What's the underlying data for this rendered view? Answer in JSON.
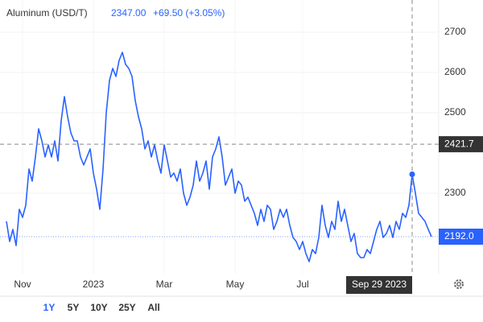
{
  "chart_data": {
    "type": "line",
    "title": "Aluminum (USD/T)",
    "price": "2347.00",
    "change": "+69.50 (+3.05%)",
    "series": [
      {
        "color": "#2962ff",
        "values": [
          2230,
          2180,
          2210,
          2170,
          2260,
          2240,
          2270,
          2360,
          2330,
          2390,
          2460,
          2430,
          2390,
          2420,
          2390,
          2430,
          2380,
          2480,
          2540,
          2490,
          2450,
          2430,
          2430,
          2390,
          2370,
          2390,
          2410,
          2350,
          2310,
          2260,
          2360,
          2500,
          2580,
          2610,
          2590,
          2630,
          2650,
          2620,
          2610,
          2590,
          2530,
          2490,
          2460,
          2410,
          2430,
          2390,
          2420,
          2380,
          2350,
          2420,
          2380,
          2340,
          2350,
          2330,
          2360,
          2300,
          2270,
          2290,
          2320,
          2380,
          2330,
          2350,
          2380,
          2310,
          2390,
          2410,
          2440,
          2390,
          2320,
          2340,
          2360,
          2300,
          2330,
          2320,
          2280,
          2290,
          2270,
          2250,
          2220,
          2260,
          2230,
          2270,
          2260,
          2210,
          2230,
          2260,
          2240,
          2260,
          2220,
          2190,
          2180,
          2160,
          2180,
          2150,
          2130,
          2160,
          2150,
          2190,
          2270,
          2220,
          2190,
          2230,
          2210,
          2280,
          2230,
          2260,
          2220,
          2180,
          2200,
          2150,
          2140,
          2140,
          2160,
          2150,
          2180,
          2210,
          2230,
          2190,
          2200,
          2220,
          2190,
          2230,
          2210,
          2250,
          2240,
          2270,
          2347,
          2300,
          2250,
          2240,
          2230,
          2210,
          2192
        ]
      }
    ],
    "ylim": [
      2100,
      2780
    ],
    "yticks": [
      2300,
      2500,
      2600,
      2700
    ],
    "xticks": [
      {
        "value": 5,
        "label": "Nov"
      },
      {
        "value": 27,
        "label": "2023"
      },
      {
        "value": 49,
        "label": "Mar"
      },
      {
        "value": 71,
        "label": "May"
      },
      {
        "value": 92,
        "label": "Jul"
      }
    ],
    "last_price": {
      "value": 2192,
      "label": "2192.0"
    },
    "crosshair": {
      "y": 2421.7,
      "point": 2347,
      "x_label": "Sep 29 2023"
    },
    "range_buttons": [
      "1Y",
      "5Y",
      "10Y",
      "25Y",
      "All"
    ],
    "active_range": 0
  }
}
